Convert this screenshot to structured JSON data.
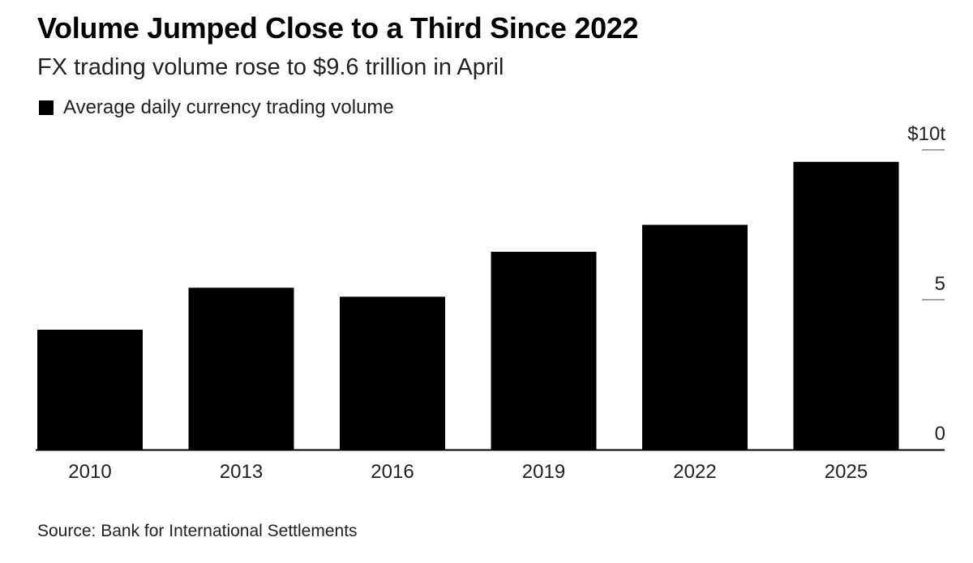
{
  "header": {
    "title": "Volume Jumped Close to a Third Since 2022",
    "subtitle": "FX trading volume rose to $9.6 trillion in April"
  },
  "legend": {
    "label": "Average daily currency trading volume"
  },
  "footer": {
    "source": "Source: Bank for International Settlements"
  },
  "colors": {
    "bar": "#000000",
    "axis": "#000000",
    "tick": "#888888"
  },
  "chart_data": {
    "type": "bar",
    "title": "Volume Jumped Close to a Third Since 2022",
    "subtitle": "FX trading volume rose to $9.6 trillion in April",
    "categories": [
      "2010",
      "2013",
      "2016",
      "2019",
      "2022",
      "2025"
    ],
    "series": [
      {
        "name": "Average daily currency trading volume",
        "values": [
          4.0,
          5.4,
          5.1,
          6.6,
          7.5,
          9.6
        ]
      }
    ],
    "ylim": [
      0,
      10
    ],
    "y_ticks": [
      {
        "value": 10,
        "label": "$10t"
      },
      {
        "value": 5,
        "label": "5"
      },
      {
        "value": 0,
        "label": "0"
      }
    ],
    "y_axis_side": "right",
    "grid": false,
    "legend_position": "top-left",
    "source": "Source: Bank for International Settlements"
  }
}
